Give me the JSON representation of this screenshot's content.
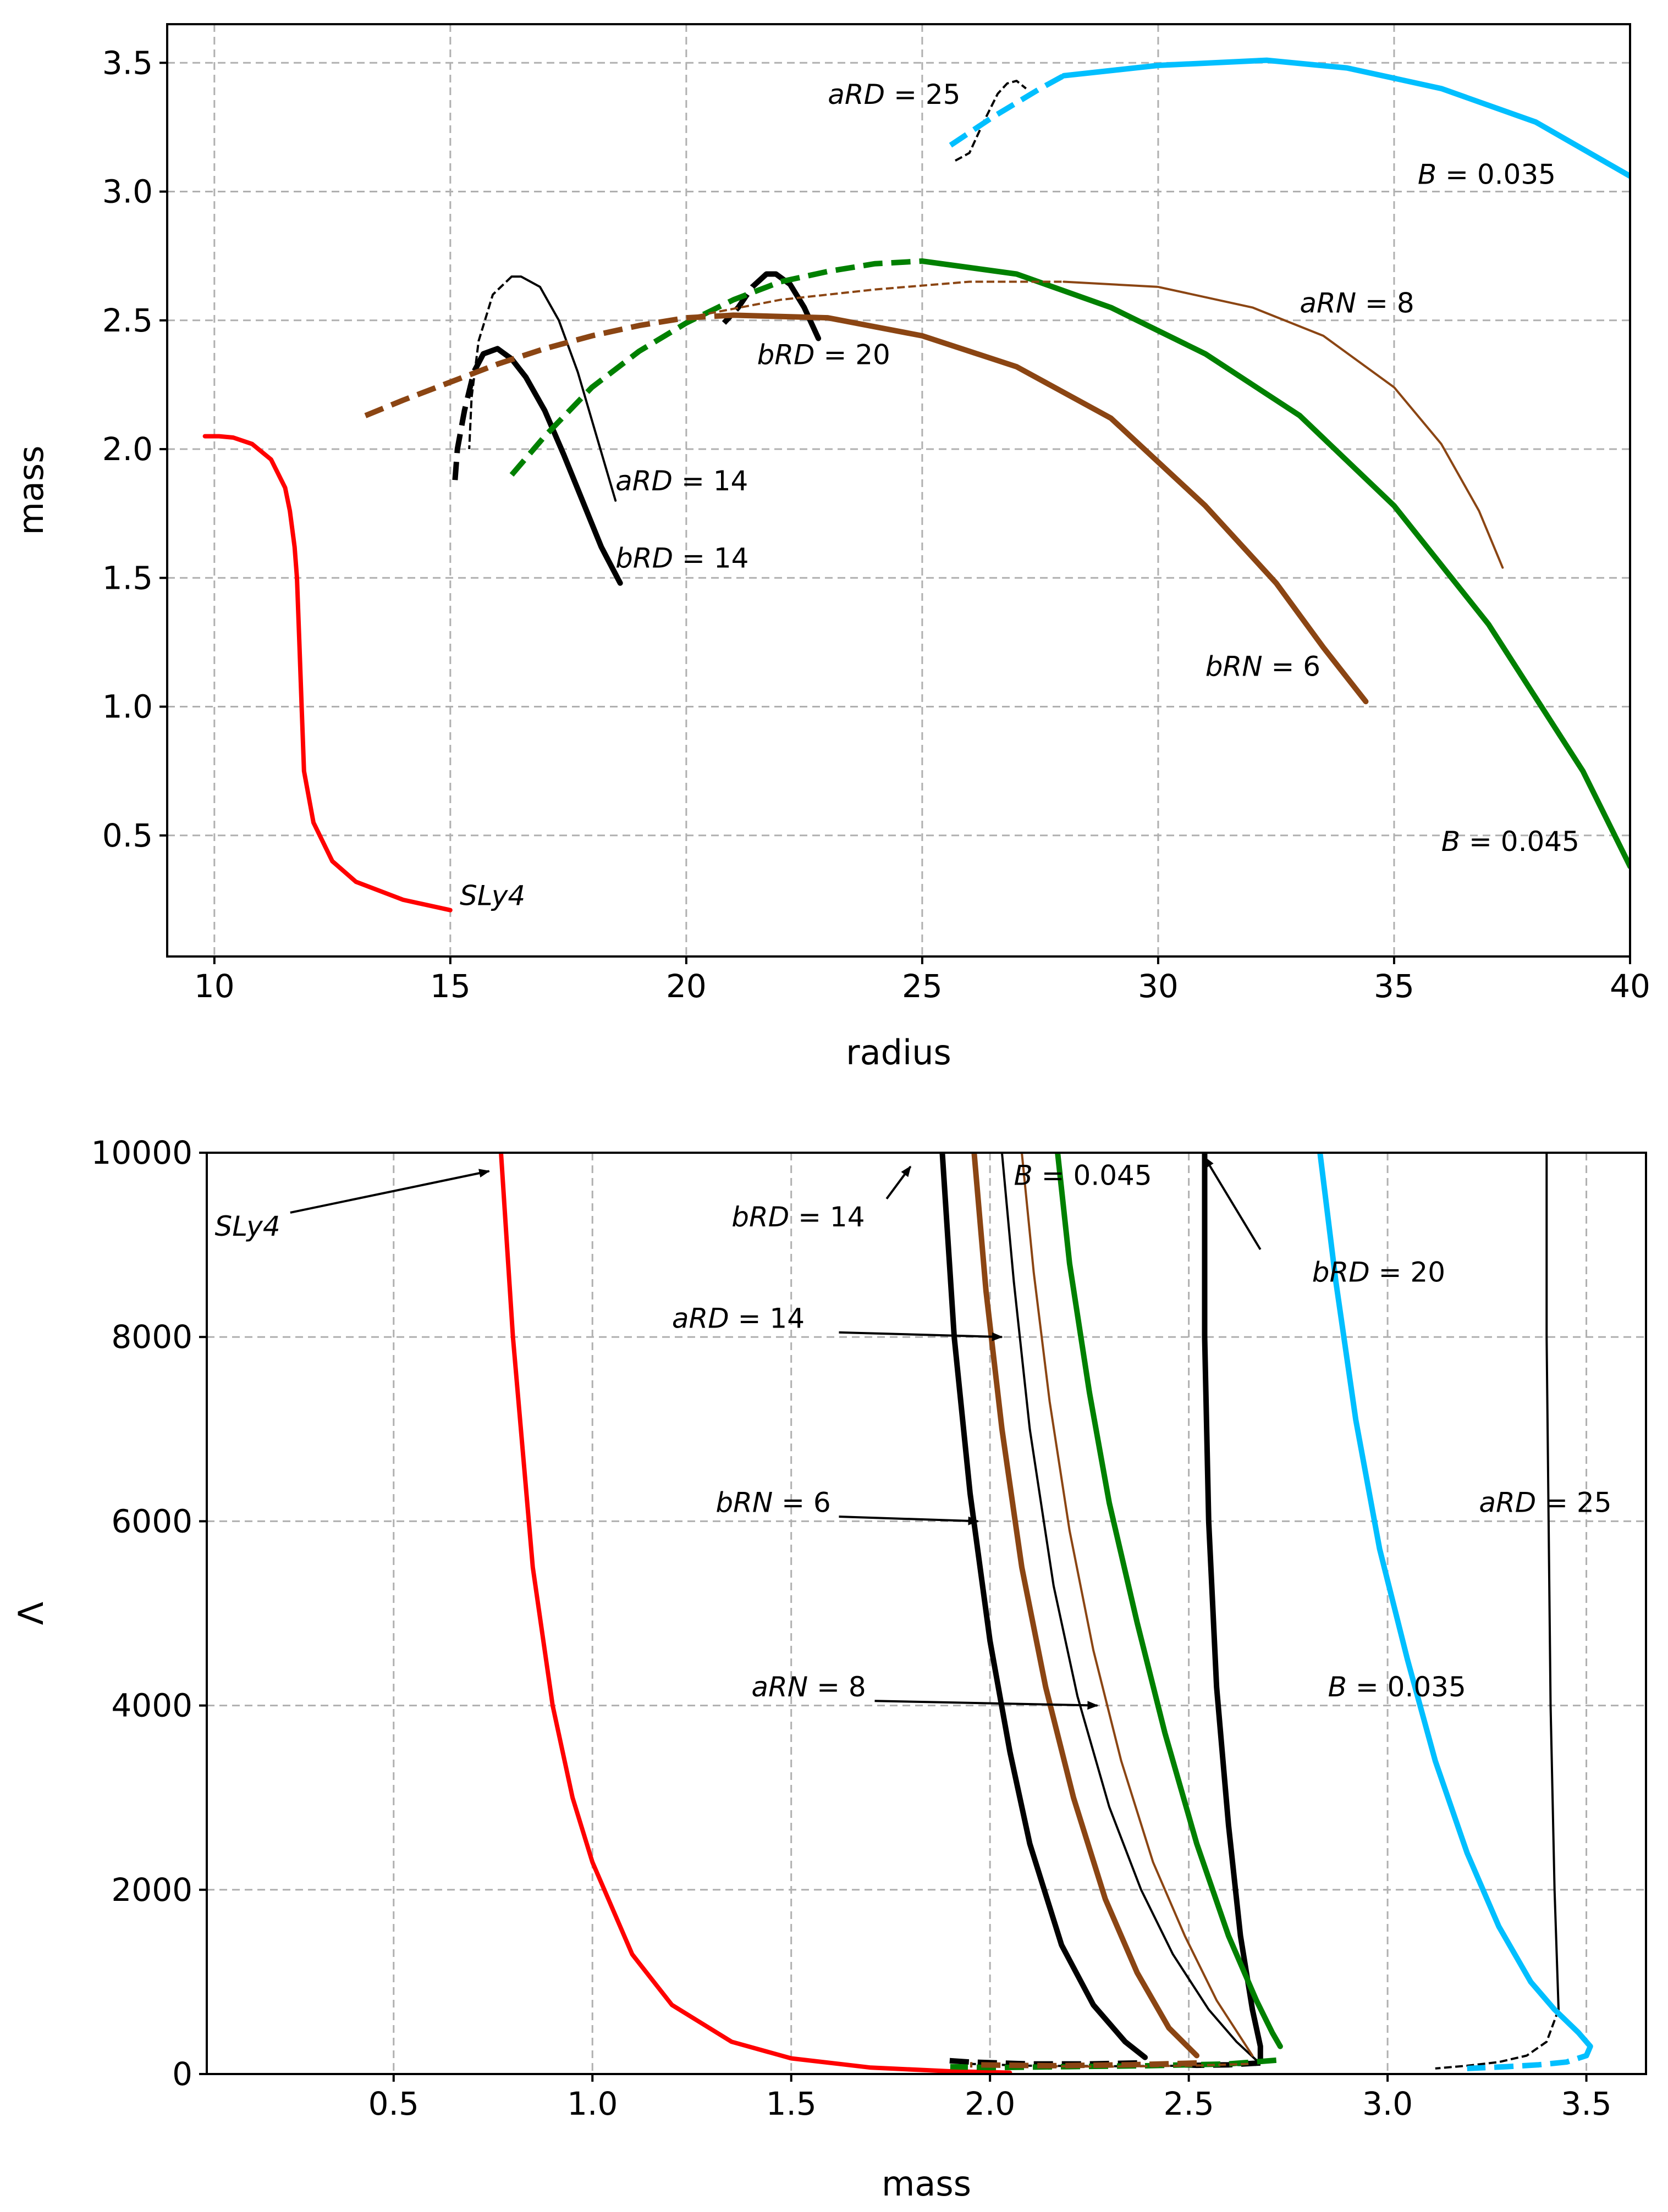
{
  "chart_data": [
    {
      "type": "line",
      "title": "",
      "xlabel": "radius",
      "ylabel": "mass",
      "xlim": [
        9,
        40
      ],
      "ylim": [
        0.03,
        3.65
      ],
      "xticks": [
        10,
        15,
        20,
        25,
        30,
        35,
        40
      ],
      "yticks": [
        0.5,
        1.0,
        1.5,
        2.0,
        2.5,
        3.0,
        3.5
      ],
      "xtick_labels": [
        "10",
        "15",
        "20",
        "25",
        "30",
        "35",
        "40"
      ],
      "ytick_labels": [
        "0.5",
        "1.0",
        "1.5",
        "2.0",
        "2.5",
        "3.0",
        "3.5"
      ],
      "grid": true,
      "series": [
        {
          "name": "SLy4",
          "color": "#ff0000",
          "weight": "medium",
          "style": "solid",
          "x": [
            15.0,
            14.0,
            13.0,
            12.5,
            12.1,
            11.9,
            11.85,
            11.8,
            11.75,
            11.7,
            11.6,
            11.5,
            11.2,
            10.8,
            10.4,
            10.1,
            9.8
          ],
          "y": [
            0.21,
            0.25,
            0.32,
            0.4,
            0.55,
            0.75,
            1.0,
            1.25,
            1.5,
            1.62,
            1.76,
            1.85,
            1.96,
            2.02,
            2.045,
            2.05,
            2.05
          ]
        },
        {
          "name": "bRD = 14",
          "color": "#000000",
          "weight": "thick",
          "style": "solid",
          "x": [
            18.6,
            18.2,
            17.8,
            17.4,
            17.0,
            16.6,
            16.3,
            16.0,
            15.7
          ],
          "y": [
            1.48,
            1.62,
            1.8,
            1.98,
            2.15,
            2.28,
            2.35,
            2.39,
            2.37
          ]
        },
        {
          "name": "bRD = 14 (unstable)",
          "color": "#000000",
          "weight": "thick",
          "style": "dashed",
          "x": [
            15.7,
            15.5,
            15.3,
            15.15,
            15.1
          ],
          "y": [
            2.37,
            2.3,
            2.15,
            2.0,
            1.88
          ]
        },
        {
          "name": "aRD = 14",
          "color": "#000000",
          "weight": "thin",
          "style": "solid",
          "x": [
            18.5,
            18.1,
            17.7,
            17.3,
            16.9,
            16.5,
            16.3
          ],
          "y": [
            1.8,
            2.05,
            2.3,
            2.5,
            2.63,
            2.67,
            2.67
          ]
        },
        {
          "name": "aRD = 14 (unstable)",
          "color": "#000000",
          "weight": "thin",
          "style": "dashed",
          "x": [
            16.3,
            15.9,
            15.6,
            15.45,
            15.4
          ],
          "y": [
            2.67,
            2.6,
            2.42,
            2.2,
            2.0
          ]
        },
        {
          "name": "bRD = 20",
          "color": "#000000",
          "weight": "thick",
          "style": "solid",
          "x": [
            22.8,
            22.5,
            22.2,
            21.9,
            21.7
          ],
          "y": [
            2.43,
            2.55,
            2.64,
            2.68,
            2.68
          ]
        },
        {
          "name": "bRD = 20 (unstable)",
          "color": "#000000",
          "weight": "thick",
          "style": "dashed",
          "x": [
            21.7,
            21.4,
            21.1,
            20.8
          ],
          "y": [
            2.68,
            2.63,
            2.55,
            2.49
          ]
        },
        {
          "name": "aRD = 25",
          "color": "#000000",
          "weight": "thin",
          "style": "dashed",
          "x": [
            25.7,
            26.0,
            26.3,
            26.6,
            26.8,
            27.0,
            27.2
          ],
          "y": [
            3.12,
            3.15,
            3.27,
            3.38,
            3.42,
            3.43,
            3.4
          ]
        },
        {
          "name": "B = 0.035",
          "color": "#00bfff",
          "weight": "thick",
          "style": "solid",
          "x": [
            28.0,
            30.0,
            32.3,
            34.0,
            36.0,
            38.0,
            40.0
          ],
          "y": [
            3.45,
            3.49,
            3.51,
            3.48,
            3.4,
            3.27,
            3.06
          ]
        },
        {
          "name": "B = 0.035 (unstable)",
          "color": "#00bfff",
          "weight": "thick",
          "style": "dashed",
          "x": [
            25.6,
            26.5,
            27.5,
            28.0
          ],
          "y": [
            3.18,
            3.29,
            3.4,
            3.45
          ]
        },
        {
          "name": "B = 0.045",
          "color": "#008000",
          "weight": "thick",
          "style": "solid",
          "x": [
            25.0,
            27.0,
            29.0,
            31.0,
            33.0,
            35.0,
            37.0,
            39.0,
            40.0
          ],
          "y": [
            2.73,
            2.68,
            2.55,
            2.37,
            2.13,
            1.78,
            1.32,
            0.75,
            0.38
          ]
        },
        {
          "name": "B = 0.045 (unstable)",
          "color": "#008000",
          "weight": "thick",
          "style": "dashed",
          "x": [
            16.3,
            17.0,
            18.0,
            19.0,
            20.0,
            21.0,
            22.0,
            23.0,
            24.0,
            25.0
          ],
          "y": [
            1.9,
            2.05,
            2.24,
            2.38,
            2.49,
            2.58,
            2.65,
            2.69,
            2.72,
            2.73
          ]
        },
        {
          "name": "bRN = 6",
          "color": "#8b4513",
          "weight": "thick",
          "style": "solid",
          "x": [
            21.0,
            23.0,
            25.0,
            27.0,
            29.0,
            31.0,
            32.5,
            33.5,
            34.4
          ],
          "y": [
            2.52,
            2.51,
            2.44,
            2.32,
            2.12,
            1.78,
            1.48,
            1.23,
            1.02
          ]
        },
        {
          "name": "bRN = 6 (unstable)",
          "color": "#8b4513",
          "weight": "thick",
          "style": "dashed",
          "x": [
            13.2,
            14.0,
            15.0,
            16.0,
            17.0,
            18.0,
            19.0,
            20.0,
            21.0
          ],
          "y": [
            2.13,
            2.19,
            2.26,
            2.33,
            2.39,
            2.44,
            2.48,
            2.51,
            2.52
          ]
        },
        {
          "name": "aRN = 8",
          "color": "#8b4513",
          "weight": "thin",
          "style": "solid",
          "x": [
            28.0,
            30.0,
            32.0,
            33.5,
            35.0,
            36.0,
            36.8,
            37.3
          ],
          "y": [
            2.65,
            2.63,
            2.55,
            2.44,
            2.24,
            2.02,
            1.76,
            1.54
          ]
        },
        {
          "name": "aRN = 8 (unstable)",
          "color": "#8b4513",
          "weight": "thin",
          "style": "dashed",
          "x": [
            20.0,
            22.0,
            24.0,
            26.0,
            28.0
          ],
          "y": [
            2.51,
            2.58,
            2.62,
            2.65,
            2.65
          ]
        }
      ],
      "annotations": [
        {
          "text": "aRD = 25",
          "x": 23.0,
          "y": 3.34
        },
        {
          "text": "B = 0.035",
          "x": 35.5,
          "y": 3.03
        },
        {
          "text": "aRN = 8",
          "x": 33.0,
          "y": 2.53
        },
        {
          "text": "bRD = 20",
          "x": 21.5,
          "y": 2.33
        },
        {
          "text": "aRD = 14",
          "x": 18.5,
          "y": 1.84
        },
        {
          "text": "bRD = 14",
          "x": 18.5,
          "y": 1.54
        },
        {
          "text": "bRN = 6",
          "x": 31.0,
          "y": 1.12
        },
        {
          "text": "B = 0.045",
          "x": 36.0,
          "y": 0.44
        },
        {
          "text": "SLy4",
          "x": 15.2,
          "y": 0.23
        }
      ]
    },
    {
      "type": "line",
      "title": "",
      "xlabel": "mass",
      "ylabel": "Λ",
      "xlim": [
        0.03,
        3.65
      ],
      "ylim": [
        0,
        10000
      ],
      "xticks": [
        0.5,
        1.0,
        1.5,
        2.0,
        2.5,
        3.0,
        3.5
      ],
      "yticks": [
        0,
        2000,
        4000,
        6000,
        8000,
        10000
      ],
      "xtick_labels": [
        "0.5",
        "1.0",
        "1.5",
        "2.0",
        "2.5",
        "3.0",
        "3.5"
      ],
      "ytick_labels": [
        "0",
        "2000",
        "4000",
        "6000",
        "8000",
        "10000"
      ],
      "grid": true,
      "series": [
        {
          "name": "SLy4",
          "color": "#ff0000",
          "weight": "medium",
          "style": "solid",
          "x": [
            0.77,
            0.8,
            0.85,
            0.9,
            0.95,
            1.0,
            1.1,
            1.2,
            1.35,
            1.5,
            1.7,
            1.9,
            2.05
          ],
          "y": [
            10000,
            8000,
            5500,
            4000,
            3000,
            2300,
            1300,
            750,
            350,
            170,
            70,
            30,
            15
          ]
        },
        {
          "name": "bRD = 14",
          "color": "#000000",
          "weight": "thick",
          "style": "solid",
          "x": [
            1.88,
            1.91,
            1.95,
            2.0,
            2.05,
            2.1,
            2.18,
            2.26,
            2.34,
            2.39
          ],
          "y": [
            10000,
            8000,
            6300,
            4700,
            3500,
            2500,
            1400,
            750,
            350,
            180
          ]
        },
        {
          "name": "bRD = 14 (unstable)",
          "color": "#000000",
          "weight": "thick",
          "style": "dashed",
          "x": [
            2.37,
            2.25,
            2.1,
            1.95,
            1.88
          ],
          "y": [
            120,
            110,
            110,
            130,
            150
          ]
        },
        {
          "name": "aRD = 14",
          "color": "#000000",
          "weight": "thin",
          "style": "solid",
          "x": [
            2.03,
            2.06,
            2.1,
            2.16,
            2.22,
            2.3,
            2.38,
            2.46,
            2.55,
            2.62,
            2.67
          ],
          "y": [
            10000,
            8600,
            7000,
            5300,
            4100,
            2900,
            2000,
            1300,
            700,
            350,
            150
          ]
        },
        {
          "name": "aRD = 14 (unstable)",
          "color": "#000000",
          "weight": "thin",
          "style": "dashed",
          "x": [
            2.67,
            2.5,
            2.3,
            2.1,
            1.95
          ],
          "y": [
            100,
            90,
            85,
            90,
            110
          ]
        },
        {
          "name": "bRD = 20",
          "color": "#000000",
          "weight": "thick",
          "style": "solid",
          "x": [
            2.54,
            2.54,
            2.55,
            2.57,
            2.6,
            2.63,
            2.66,
            2.68,
            2.68
          ],
          "y": [
            10000,
            8000,
            6000,
            4200,
            2700,
            1500,
            700,
            300,
            150
          ]
        },
        {
          "name": "bRD = 20 (unstable)",
          "color": "#000000",
          "weight": "thick",
          "style": "dashed",
          "x": [
            2.68,
            2.6,
            2.52,
            2.49
          ],
          "y": [
            120,
            100,
            95,
            100
          ]
        },
        {
          "name": "aRD = 25",
          "color": "#000000",
          "weight": "thin",
          "style": "solid",
          "x": [
            3.4,
            3.4,
            3.405,
            3.41,
            3.42,
            3.43
          ],
          "y": [
            10000,
            8000,
            6000,
            4000,
            2000,
            700
          ]
        },
        {
          "name": "aRD = 25 (unstable)",
          "color": "#000000",
          "weight": "thin",
          "style": "dashed",
          "x": [
            3.43,
            3.4,
            3.35,
            3.28,
            3.2,
            3.12
          ],
          "y": [
            700,
            350,
            200,
            130,
            90,
            60
          ]
        },
        {
          "name": "B = 0.035",
          "color": "#00bfff",
          "weight": "thick",
          "style": "solid",
          "x": [
            2.83,
            2.87,
            2.92,
            2.98,
            3.05,
            3.12,
            3.2,
            3.28,
            3.36,
            3.42,
            3.48,
            3.51
          ],
          "y": [
            10000,
            8600,
            7100,
            5700,
            4500,
            3400,
            2400,
            1600,
            1000,
            700,
            450,
            300
          ]
        },
        {
          "name": "B = 0.035 (unstable)",
          "color": "#00bfff",
          "weight": "thick",
          "style": "dashed",
          "x": [
            3.51,
            3.5,
            3.45,
            3.38,
            3.3,
            3.2
          ],
          "y": [
            300,
            200,
            130,
            100,
            80,
            60
          ]
        },
        {
          "name": "B = 0.045",
          "color": "#008000",
          "weight": "thick",
          "style": "solid",
          "x": [
            2.17,
            2.2,
            2.25,
            2.3,
            2.37,
            2.44,
            2.52,
            2.6,
            2.67,
            2.71,
            2.73
          ],
          "y": [
            10000,
            8800,
            7400,
            6200,
            4900,
            3700,
            2500,
            1500,
            800,
            450,
            300
          ]
        },
        {
          "name": "B = 0.045 (unstable)",
          "color": "#008000",
          "weight": "thick",
          "style": "dashed",
          "x": [
            2.72,
            2.6,
            2.4,
            2.2,
            2.0,
            1.9
          ],
          "y": [
            150,
            110,
            90,
            80,
            70,
            80
          ]
        },
        {
          "name": "bRN = 6",
          "color": "#8b4513",
          "weight": "thick",
          "style": "solid",
          "x": [
            1.96,
            1.99,
            2.03,
            2.08,
            2.14,
            2.21,
            2.29,
            2.37,
            2.45,
            2.52
          ],
          "y": [
            10000,
            8500,
            7000,
            5500,
            4200,
            3000,
            1900,
            1100,
            500,
            200
          ]
        },
        {
          "name": "bRN = 6 (unstable)",
          "color": "#8b4513",
          "weight": "thick",
          "style": "dashed",
          "x": [
            2.52,
            2.35,
            2.15,
            1.95
          ],
          "y": [
            120,
            100,
            90,
            100
          ]
        },
        {
          "name": "aRN = 8",
          "color": "#8b4513",
          "weight": "thin",
          "style": "solid",
          "x": [
            2.08,
            2.11,
            2.15,
            2.2,
            2.26,
            2.33,
            2.41,
            2.49,
            2.57,
            2.63,
            2.66
          ],
          "y": [
            10000,
            8700,
            7300,
            5900,
            4600,
            3400,
            2300,
            1500,
            800,
            400,
            200
          ]
        },
        {
          "name": "aRN = 8 (unstable)",
          "color": "#8b4513",
          "weight": "thin",
          "style": "dashed",
          "x": [
            2.65,
            2.5,
            2.3,
            2.15
          ],
          "y": [
            110,
            90,
            80,
            85
          ]
        }
      ],
      "annotations": [
        {
          "text": "SLy4",
          "x": 0.05,
          "y": 9100
        },
        {
          "text": "bRD = 14",
          "x": 1.35,
          "y": 9200
        },
        {
          "text": "B = 0.045",
          "x": 2.06,
          "y": 9650
        },
        {
          "text": "bRD = 20",
          "x": 2.81,
          "y": 8600
        },
        {
          "text": "aRD = 14",
          "x": 1.2,
          "y": 8100
        },
        {
          "text": "bRN = 6",
          "x": 1.31,
          "y": 6100
        },
        {
          "text": "aRD = 25",
          "x": 3.23,
          "y": 6100
        },
        {
          "text": "aRN = 8",
          "x": 1.4,
          "y": 4100
        },
        {
          "text": "B = 0.035",
          "x": 2.85,
          "y": 4100
        }
      ],
      "arrows": [
        {
          "from": [
            0.24,
            9350
          ],
          "to": [
            0.74,
            9800
          ]
        },
        {
          "from": [
            1.74,
            9500
          ],
          "to": [
            1.8,
            9850
          ]
        },
        {
          "from": [
            2.68,
            8950
          ],
          "to": [
            2.54,
            9950
          ]
        },
        {
          "from": [
            1.62,
            8050
          ],
          "to": [
            2.03,
            8000
          ]
        },
        {
          "from": [
            1.62,
            6050
          ],
          "to": [
            1.97,
            6000
          ]
        },
        {
          "from": [
            1.71,
            4050
          ],
          "to": [
            2.27,
            4000
          ]
        }
      ]
    }
  ]
}
